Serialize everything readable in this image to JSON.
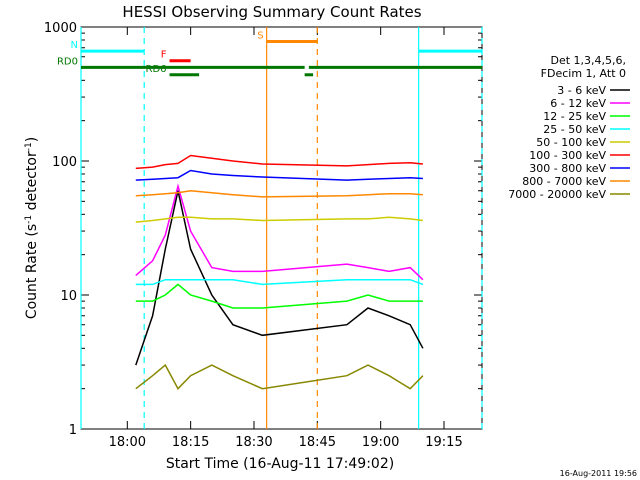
{
  "chart_data": {
    "type": "line",
    "title": "HESSI Observing Summary Count Rates",
    "xlabel": "Start Time (16-Aug-11 17:49:02)",
    "ylabel_main": "Count Rate (s",
    "ylabel_sup1": "-1",
    "ylabel_mid": " detector",
    "ylabel_sup2": "-1",
    "ylabel_end": ")",
    "footer": "16-Aug-2011 19:56",
    "y_scale": "log",
    "ylim": [
      1,
      1000
    ],
    "xlim": [
      "17:49:02",
      "19:24:00"
    ],
    "x_ticks": [
      "18:00",
      "18:15",
      "18:30",
      "18:45",
      "19:00",
      "19:15"
    ],
    "y_ticks": [
      "1",
      "10",
      "100",
      "1000"
    ],
    "legend": {
      "placement": "right",
      "header1": "Det 1,3,4,5,6,",
      "header2": "FDecim 1, Att 0"
    },
    "series": [
      {
        "name": "3 - 6 keV",
        "color": "#000000",
        "x": [
          "18:02",
          "18:06",
          "18:09",
          "18:12",
          "18:15",
          "18:20",
          "18:25",
          "18:32",
          "18:52",
          "18:57",
          "19:02",
          "19:07",
          "19:10"
        ],
        "y": [
          3,
          7,
          22,
          60,
          22,
          10,
          6,
          5,
          6,
          8,
          7,
          6,
          4
        ]
      },
      {
        "name": "6 - 12 keV",
        "color": "#ff00ff",
        "x": [
          "18:02",
          "18:06",
          "18:09",
          "18:12",
          "18:15",
          "18:20",
          "18:25",
          "18:32",
          "18:52",
          "18:57",
          "19:02",
          "19:07",
          "19:10"
        ],
        "y": [
          14,
          18,
          28,
          65,
          30,
          16,
          15,
          15,
          17,
          16,
          15,
          16,
          13
        ]
      },
      {
        "name": "12 - 25 keV",
        "color": "#00ff00",
        "x": [
          "18:02",
          "18:06",
          "18:09",
          "18:12",
          "18:15",
          "18:20",
          "18:25",
          "18:32",
          "18:52",
          "18:57",
          "19:02",
          "19:07",
          "19:10"
        ],
        "y": [
          9,
          9,
          10,
          12,
          10,
          9,
          8,
          8,
          9,
          10,
          9,
          9,
          9
        ]
      },
      {
        "name": "25 - 50 keV",
        "color": "#00ffff",
        "x": [
          "18:02",
          "18:06",
          "18:09",
          "18:12",
          "18:15",
          "18:20",
          "18:25",
          "18:32",
          "18:52",
          "18:57",
          "19:02",
          "19:07",
          "19:10"
        ],
        "y": [
          12,
          12,
          13,
          13,
          13,
          13,
          13,
          12,
          13,
          13,
          13,
          13,
          12
        ]
      },
      {
        "name": "50 - 100 keV",
        "color": "#cccc00",
        "x": [
          "18:02",
          "18:06",
          "18:09",
          "18:12",
          "18:15",
          "18:20",
          "18:25",
          "18:32",
          "18:52",
          "18:57",
          "19:02",
          "19:07",
          "19:10"
        ],
        "y": [
          35,
          36,
          37,
          38,
          38,
          37,
          37,
          36,
          37,
          37,
          38,
          37,
          36
        ]
      },
      {
        "name": "100 - 300 keV",
        "color": "#ff0000",
        "x": [
          "18:02",
          "18:06",
          "18:09",
          "18:12",
          "18:15",
          "18:20",
          "18:25",
          "18:32",
          "18:52",
          "18:57",
          "19:02",
          "19:07",
          "19:10"
        ],
        "y": [
          88,
          90,
          94,
          96,
          110,
          105,
          100,
          95,
          92,
          94,
          96,
          97,
          95
        ]
      },
      {
        "name": "300 - 800 keV",
        "color": "#0000ff",
        "x": [
          "18:02",
          "18:06",
          "18:09",
          "18:12",
          "18:15",
          "18:20",
          "18:25",
          "18:32",
          "18:52",
          "18:57",
          "19:02",
          "19:07",
          "19:10"
        ],
        "y": [
          72,
          73,
          74,
          75,
          85,
          80,
          78,
          76,
          72,
          73,
          74,
          75,
          74
        ]
      },
      {
        "name": "800 - 7000 keV",
        "color": "#ff8800",
        "x": [
          "18:02",
          "18:06",
          "18:09",
          "18:12",
          "18:15",
          "18:20",
          "18:25",
          "18:32",
          "18:52",
          "18:57",
          "19:02",
          "19:07",
          "19:10"
        ],
        "y": [
          55,
          56,
          57,
          58,
          60,
          58,
          56,
          54,
          55,
          56,
          57,
          57,
          56
        ]
      },
      {
        "name": "7000 - 20000 keV",
        "color": "#888800",
        "x": [
          "18:02",
          "18:06",
          "18:09",
          "18:12",
          "18:15",
          "18:20",
          "18:25",
          "18:32",
          "18:52",
          "18:57",
          "19:02",
          "19:07",
          "19:10"
        ],
        "y": [
          2,
          2.5,
          3,
          2,
          2.5,
          3,
          2.5,
          2,
          2.5,
          3,
          2.5,
          2,
          2.5
        ]
      }
    ],
    "flags": [
      {
        "label": "N",
        "color": "#00ffff",
        "level": 660,
        "segments": [
          [
            "17:49:02",
            "18:04"
          ],
          [
            "19:09",
            "19:24"
          ]
        ]
      },
      {
        "label": "F",
        "color": "#ff0000",
        "level": 560,
        "segments": [
          [
            "18:10",
            "18:15"
          ]
        ]
      },
      {
        "label": "RD0",
        "color": "#007700",
        "level": 500,
        "segments": [
          [
            "17:49:02",
            "18:42"
          ],
          [
            "18:43",
            "19:24"
          ]
        ]
      },
      {
        "label": "RD6",
        "color": "#007700",
        "level": 440,
        "segments": [
          [
            "18:10",
            "18:17"
          ],
          [
            "18:42",
            "18:44"
          ]
        ]
      },
      {
        "label": "S",
        "color": "#ff8800",
        "level": 780,
        "segments": [
          [
            "18:33",
            "18:45"
          ]
        ]
      }
    ],
    "markers": [
      {
        "color": "#00ffff",
        "style": "solid",
        "x": "17:49:02"
      },
      {
        "color": "#00ffff",
        "style": "dashed",
        "x": "18:04"
      },
      {
        "color": "#00ffff",
        "style": "solid",
        "x": "19:09"
      },
      {
        "color": "#00ffff",
        "style": "dashed",
        "x": "19:24"
      },
      {
        "color": "#ff8800",
        "style": "solid",
        "x": "18:33"
      },
      {
        "color": "#ff8800",
        "style": "dashed",
        "x": "18:45"
      }
    ]
  }
}
